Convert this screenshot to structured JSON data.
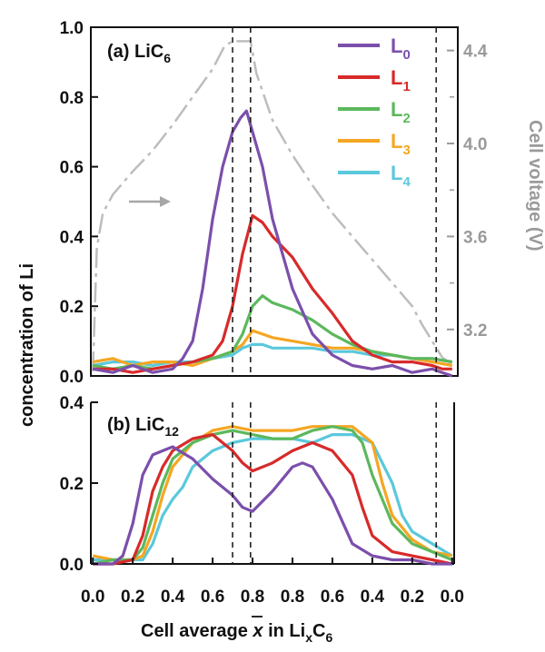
{
  "chart_data": [
    {
      "panel": "a",
      "type": "line",
      "panel_label": "(a) LiC",
      "panel_label_sub": "6",
      "xlabel_main": "Cell average ",
      "xlabel_xbar": "x",
      "xlabel_in": " in Li",
      "xlabel_sub_x": "x",
      "xlabel_c": "C",
      "xlabel_sub_6": "6",
      "ylabel": "concentration of Li",
      "ylabel_right": "Cell voltage (V)",
      "x_ticks": [
        "0.0",
        "0.2",
        "0.4",
        "0.6",
        "0.8",
        "0.8",
        "0.6",
        "0.4",
        "0.2",
        "0.0"
      ],
      "x_tick_positions": [
        0.0,
        0.2,
        0.4,
        0.6,
        0.8,
        1.0,
        1.2,
        1.4,
        1.6,
        1.8
      ],
      "xlim": [
        -0.01,
        1.81
      ],
      "ylim": [
        0,
        1.0
      ],
      "y_ticks": [
        "0.0",
        "0.2",
        "0.4",
        "0.6",
        "0.8",
        "1.0"
      ],
      "y_tick_values": [
        0.0,
        0.2,
        0.4,
        0.6,
        0.8,
        1.0
      ],
      "y2lim": [
        3.0,
        4.5
      ],
      "y2_ticks": [
        "3.2",
        "3.6",
        "4.0",
        "4.4"
      ],
      "y2_tick_values": [
        3.2,
        3.6,
        4.0,
        4.4
      ],
      "vlines": [
        0.7,
        0.79,
        1.72
      ],
      "series": [
        {
          "name": "L0",
          "label": "L",
          "sub": "0",
          "color": "#7b4fab",
          "x": [
            0.0,
            0.1,
            0.2,
            0.3,
            0.4,
            0.45,
            0.5,
            0.55,
            0.6,
            0.65,
            0.7,
            0.74,
            0.77,
            0.8,
            0.85,
            0.9,
            0.95,
            1.0,
            1.1,
            1.2,
            1.3,
            1.4,
            1.5,
            1.6,
            1.7,
            1.75,
            1.8
          ],
          "values": [
            0.02,
            0.01,
            0.03,
            0.01,
            0.02,
            0.05,
            0.1,
            0.25,
            0.45,
            0.6,
            0.7,
            0.74,
            0.76,
            0.7,
            0.6,
            0.45,
            0.35,
            0.25,
            0.12,
            0.06,
            0.03,
            0.02,
            0.03,
            0.01,
            0.02,
            0.01,
            0.0
          ]
        },
        {
          "name": "L1",
          "label": "L",
          "sub": "1",
          "color": "#d72a2a",
          "x": [
            0.0,
            0.1,
            0.2,
            0.3,
            0.4,
            0.5,
            0.6,
            0.65,
            0.7,
            0.75,
            0.8,
            0.85,
            0.9,
            1.0,
            1.1,
            1.2,
            1.3,
            1.4,
            1.5,
            1.6,
            1.7,
            1.75,
            1.8
          ],
          "values": [
            0.02,
            0.02,
            0.01,
            0.02,
            0.03,
            0.04,
            0.06,
            0.1,
            0.2,
            0.35,
            0.46,
            0.44,
            0.4,
            0.34,
            0.25,
            0.18,
            0.1,
            0.06,
            0.04,
            0.04,
            0.03,
            0.02,
            0.02
          ]
        },
        {
          "name": "L2",
          "label": "L",
          "sub": "2",
          "color": "#5cb85c",
          "x": [
            0.0,
            0.1,
            0.2,
            0.3,
            0.4,
            0.5,
            0.6,
            0.7,
            0.75,
            0.8,
            0.85,
            0.9,
            1.0,
            1.1,
            1.2,
            1.3,
            1.4,
            1.5,
            1.6,
            1.7,
            1.8
          ],
          "values": [
            0.03,
            0.02,
            0.03,
            0.02,
            0.03,
            0.04,
            0.05,
            0.07,
            0.12,
            0.2,
            0.23,
            0.21,
            0.19,
            0.16,
            0.12,
            0.09,
            0.07,
            0.06,
            0.05,
            0.05,
            0.04
          ]
        },
        {
          "name": "L3",
          "label": "L",
          "sub": "3",
          "color": "#f5a623",
          "x": [
            0.0,
            0.1,
            0.2,
            0.3,
            0.4,
            0.5,
            0.6,
            0.7,
            0.75,
            0.8,
            0.85,
            0.9,
            1.0,
            1.1,
            1.2,
            1.3,
            1.4,
            1.5,
            1.6,
            1.7,
            1.8
          ],
          "values": [
            0.04,
            0.05,
            0.03,
            0.04,
            0.04,
            0.03,
            0.05,
            0.07,
            0.09,
            0.13,
            0.12,
            0.11,
            0.1,
            0.09,
            0.08,
            0.08,
            0.07,
            0.06,
            0.05,
            0.04,
            0.03
          ]
        },
        {
          "name": "L4",
          "label": "L",
          "sub": "4",
          "color": "#5bc8dc",
          "x": [
            0.0,
            0.1,
            0.2,
            0.3,
            0.4,
            0.5,
            0.6,
            0.7,
            0.75,
            0.8,
            0.85,
            0.9,
            1.0,
            1.1,
            1.2,
            1.3,
            1.4,
            1.5,
            1.6,
            1.7,
            1.8
          ],
          "values": [
            0.03,
            0.04,
            0.04,
            0.03,
            0.04,
            0.04,
            0.05,
            0.06,
            0.08,
            0.09,
            0.09,
            0.08,
            0.08,
            0.08,
            0.07,
            0.07,
            0.06,
            0.06,
            0.05,
            0.05,
            0.04
          ]
        }
      ],
      "voltage_series": {
        "name": "Cell voltage",
        "color": "#bdbdbd",
        "x": [
          0.0,
          0.02,
          0.05,
          0.1,
          0.2,
          0.3,
          0.4,
          0.5,
          0.6,
          0.66,
          0.7,
          0.75,
          0.79,
          0.82,
          0.9,
          1.0,
          1.1,
          1.2,
          1.3,
          1.4,
          1.5,
          1.6,
          1.65,
          1.7,
          1.75,
          1.8
        ],
        "values": [
          3.02,
          3.55,
          3.7,
          3.78,
          3.88,
          3.97,
          4.08,
          4.2,
          4.32,
          4.42,
          4.44,
          4.44,
          4.44,
          4.3,
          4.1,
          3.95,
          3.82,
          3.7,
          3.6,
          3.5,
          3.4,
          3.3,
          3.22,
          3.15,
          3.08,
          3.05
        ]
      }
    },
    {
      "panel": "b",
      "type": "line",
      "panel_label": "(b) LiC",
      "panel_label_sub": "12",
      "xlim": [
        -0.01,
        1.81
      ],
      "ylim": [
        0,
        0.4
      ],
      "y_ticks": [
        "0.0",
        "0.2",
        "0.4"
      ],
      "y_tick_values": [
        0.0,
        0.2,
        0.4
      ],
      "vlines": [
        0.7,
        0.79,
        1.72
      ],
      "series": [
        {
          "name": "L0",
          "color": "#7b4fab",
          "x": [
            0.0,
            0.1,
            0.15,
            0.2,
            0.25,
            0.3,
            0.35,
            0.4,
            0.5,
            0.6,
            0.7,
            0.75,
            0.8,
            0.9,
            1.0,
            1.05,
            1.1,
            1.2,
            1.3,
            1.4,
            1.5,
            1.6,
            1.7,
            1.8
          ],
          "values": [
            0.0,
            0.0,
            0.02,
            0.1,
            0.22,
            0.27,
            0.28,
            0.29,
            0.26,
            0.21,
            0.17,
            0.14,
            0.13,
            0.18,
            0.24,
            0.25,
            0.24,
            0.16,
            0.05,
            0.02,
            0.01,
            0.01,
            0.0,
            0.0
          ]
        },
        {
          "name": "L1",
          "color": "#d72a2a",
          "x": [
            0.0,
            0.1,
            0.2,
            0.25,
            0.3,
            0.35,
            0.4,
            0.5,
            0.6,
            0.7,
            0.75,
            0.8,
            0.9,
            1.0,
            1.1,
            1.2,
            1.3,
            1.35,
            1.4,
            1.5,
            1.6,
            1.7,
            1.8
          ],
          "values": [
            0.0,
            0.0,
            0.01,
            0.07,
            0.18,
            0.24,
            0.28,
            0.31,
            0.32,
            0.28,
            0.25,
            0.23,
            0.25,
            0.28,
            0.3,
            0.28,
            0.22,
            0.14,
            0.07,
            0.03,
            0.02,
            0.01,
            0.0
          ]
        },
        {
          "name": "L2",
          "color": "#5cb85c",
          "x": [
            0.0,
            0.1,
            0.2,
            0.25,
            0.3,
            0.35,
            0.4,
            0.5,
            0.6,
            0.7,
            0.8,
            0.9,
            1.0,
            1.1,
            1.2,
            1.3,
            1.35,
            1.4,
            1.5,
            1.6,
            1.7,
            1.8
          ],
          "values": [
            0.0,
            0.01,
            0.01,
            0.04,
            0.12,
            0.2,
            0.26,
            0.3,
            0.32,
            0.33,
            0.32,
            0.31,
            0.31,
            0.33,
            0.34,
            0.33,
            0.3,
            0.22,
            0.1,
            0.05,
            0.03,
            0.01
          ]
        },
        {
          "name": "L3",
          "color": "#f5a623",
          "x": [
            0.0,
            0.1,
            0.2,
            0.25,
            0.3,
            0.35,
            0.4,
            0.5,
            0.6,
            0.7,
            0.8,
            0.9,
            1.0,
            1.1,
            1.2,
            1.3,
            1.4,
            1.45,
            1.5,
            1.6,
            1.7,
            1.8
          ],
          "values": [
            0.02,
            0.01,
            0.01,
            0.02,
            0.08,
            0.17,
            0.24,
            0.3,
            0.33,
            0.34,
            0.33,
            0.33,
            0.33,
            0.34,
            0.34,
            0.34,
            0.3,
            0.2,
            0.12,
            0.06,
            0.03,
            0.02
          ]
        },
        {
          "name": "L4",
          "color": "#5bc8dc",
          "x": [
            0.0,
            0.1,
            0.2,
            0.25,
            0.3,
            0.35,
            0.4,
            0.45,
            0.5,
            0.6,
            0.7,
            0.8,
            0.9,
            1.0,
            1.1,
            1.2,
            1.3,
            1.4,
            1.5,
            1.55,
            1.6,
            1.7,
            1.8
          ],
          "values": [
            0.01,
            0.01,
            0.01,
            0.01,
            0.05,
            0.12,
            0.16,
            0.19,
            0.24,
            0.28,
            0.3,
            0.31,
            0.31,
            0.31,
            0.3,
            0.32,
            0.32,
            0.3,
            0.2,
            0.12,
            0.08,
            0.05,
            0.02
          ]
        }
      ]
    }
  ]
}
